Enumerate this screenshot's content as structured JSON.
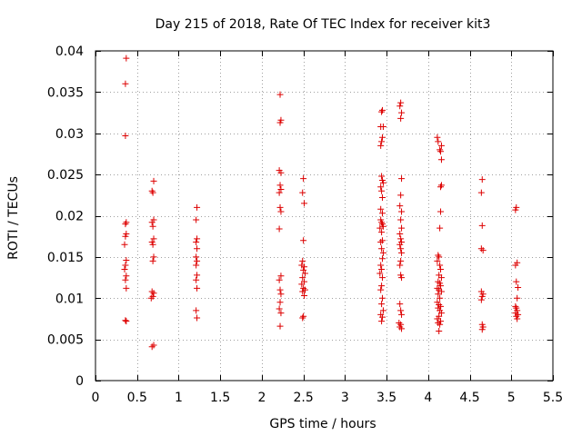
{
  "colors": {
    "marker": "#dd0000",
    "grid": "#a0a0a0",
    "axis": "#000000"
  },
  "chart_data": {
    "type": "scatter",
    "title": "Day 215 of 2018, Rate Of TEC Index for receiver kit3",
    "xlabel": "GPS time / hours",
    "ylabel": "ROTI / TECUs",
    "xlim": [
      0,
      5.5
    ],
    "ylim": [
      0,
      0.04
    ],
    "grid": true,
    "xticks": [
      0,
      0.5,
      1,
      1.5,
      2,
      2.5,
      3,
      3.5,
      4,
      4.5,
      5,
      5.5
    ],
    "xtick_labels": [
      "0",
      "0.5",
      "1",
      "1.5",
      "2",
      "2.5",
      "3",
      "3.5",
      "4",
      "4.5",
      "5",
      "5.5"
    ],
    "yticks": [
      0,
      0.005,
      0.01,
      0.015,
      0.02,
      0.025,
      0.03,
      0.035,
      0.04
    ],
    "ytick_labels": [
      "0",
      "0.005",
      "0.01",
      "0.015",
      "0.02",
      "0.025",
      "0.03",
      "0.035",
      "0.04"
    ],
    "marker": "+",
    "points": [
      [
        0.37,
        0.0391
      ],
      [
        0.36,
        0.036
      ],
      [
        0.36,
        0.0297
      ],
      [
        0.37,
        0.0192
      ],
      [
        0.36,
        0.019
      ],
      [
        0.37,
        0.0178
      ],
      [
        0.36,
        0.0175
      ],
      [
        0.35,
        0.0165
      ],
      [
        0.37,
        0.0146
      ],
      [
        0.36,
        0.014
      ],
      [
        0.35,
        0.0135
      ],
      [
        0.37,
        0.0127
      ],
      [
        0.36,
        0.0122
      ],
      [
        0.37,
        0.0112
      ],
      [
        0.36,
        0.0073
      ],
      [
        0.37,
        0.0072
      ],
      [
        0.7,
        0.0242
      ],
      [
        0.68,
        0.023
      ],
      [
        0.69,
        0.0228
      ],
      [
        0.7,
        0.0195
      ],
      [
        0.68,
        0.0192
      ],
      [
        0.69,
        0.0187
      ],
      [
        0.7,
        0.0172
      ],
      [
        0.68,
        0.0168
      ],
      [
        0.69,
        0.0165
      ],
      [
        0.7,
        0.015
      ],
      [
        0.69,
        0.0145
      ],
      [
        0.68,
        0.0108
      ],
      [
        0.7,
        0.0106
      ],
      [
        0.69,
        0.0102
      ],
      [
        0.67,
        0.01
      ],
      [
        0.7,
        0.0043
      ],
      [
        0.68,
        0.0041
      ],
      [
        1.22,
        0.021
      ],
      [
        1.21,
        0.0195
      ],
      [
        1.22,
        0.0172
      ],
      [
        1.21,
        0.0168
      ],
      [
        1.22,
        0.016
      ],
      [
        1.21,
        0.015
      ],
      [
        1.22,
        0.0145
      ],
      [
        1.21,
        0.014
      ],
      [
        1.22,
        0.0128
      ],
      [
        1.21,
        0.0122
      ],
      [
        1.22,
        0.0112
      ],
      [
        1.21,
        0.0085
      ],
      [
        1.22,
        0.0076
      ],
      [
        2.22,
        0.0347
      ],
      [
        2.23,
        0.0316
      ],
      [
        2.22,
        0.0313
      ],
      [
        2.21,
        0.0255
      ],
      [
        2.23,
        0.0252
      ],
      [
        2.22,
        0.0237
      ],
      [
        2.23,
        0.0232
      ],
      [
        2.21,
        0.0228
      ],
      [
        2.22,
        0.021
      ],
      [
        2.23,
        0.0205
      ],
      [
        2.21,
        0.0184
      ],
      [
        2.23,
        0.0127
      ],
      [
        2.21,
        0.0122
      ],
      [
        2.22,
        0.011
      ],
      [
        2.23,
        0.0105
      ],
      [
        2.22,
        0.0095
      ],
      [
        2.21,
        0.0087
      ],
      [
        2.23,
        0.0082
      ],
      [
        2.22,
        0.0066
      ],
      [
        2.5,
        0.0245
      ],
      [
        2.49,
        0.0228
      ],
      [
        2.51,
        0.0215
      ],
      [
        2.5,
        0.017
      ],
      [
        2.49,
        0.0145
      ],
      [
        2.48,
        0.014
      ],
      [
        2.51,
        0.0138
      ],
      [
        2.5,
        0.0134
      ],
      [
        2.52,
        0.013
      ],
      [
        2.49,
        0.0125
      ],
      [
        2.51,
        0.012
      ],
      [
        2.48,
        0.0117
      ],
      [
        2.5,
        0.0112
      ],
      [
        2.52,
        0.011
      ],
      [
        2.49,
        0.0108
      ],
      [
        2.51,
        0.0103
      ],
      [
        2.5,
        0.0078
      ],
      [
        2.49,
        0.0076
      ],
      [
        3.45,
        0.0328
      ],
      [
        3.44,
        0.0326
      ],
      [
        3.46,
        0.0308
      ],
      [
        3.43,
        0.0308
      ],
      [
        3.45,
        0.0295
      ],
      [
        3.44,
        0.029
      ],
      [
        3.43,
        0.0285
      ],
      [
        3.44,
        0.0248
      ],
      [
        3.45,
        0.0243
      ],
      [
        3.46,
        0.024
      ],
      [
        3.43,
        0.0235
      ],
      [
        3.44,
        0.023
      ],
      [
        3.45,
        0.0222
      ],
      [
        3.43,
        0.0208
      ],
      [
        3.45,
        0.0203
      ],
      [
        3.43,
        0.0195
      ],
      [
        3.44,
        0.0192
      ],
      [
        3.45,
        0.019
      ],
      [
        3.46,
        0.0187
      ],
      [
        3.42,
        0.0185
      ],
      [
        3.44,
        0.018
      ],
      [
        3.45,
        0.017
      ],
      [
        3.43,
        0.0168
      ],
      [
        3.44,
        0.016
      ],
      [
        3.46,
        0.0155
      ],
      [
        3.45,
        0.0148
      ],
      [
        3.43,
        0.014
      ],
      [
        3.44,
        0.0135
      ],
      [
        3.42,
        0.013
      ],
      [
        3.45,
        0.0125
      ],
      [
        3.44,
        0.0115
      ],
      [
        3.43,
        0.011
      ],
      [
        3.45,
        0.01
      ],
      [
        3.44,
        0.0093
      ],
      [
        3.46,
        0.0085
      ],
      [
        3.43,
        0.008
      ],
      [
        3.45,
        0.0077
      ],
      [
        3.44,
        0.0072
      ],
      [
        3.67,
        0.0337
      ],
      [
        3.66,
        0.0333
      ],
      [
        3.68,
        0.0325
      ],
      [
        3.67,
        0.0318
      ],
      [
        3.68,
        0.0245
      ],
      [
        3.67,
        0.0225
      ],
      [
        3.66,
        0.0212
      ],
      [
        3.68,
        0.0205
      ],
      [
        3.67,
        0.0195
      ],
      [
        3.68,
        0.0185
      ],
      [
        3.66,
        0.0178
      ],
      [
        3.67,
        0.0172
      ],
      [
        3.68,
        0.0168
      ],
      [
        3.66,
        0.0165
      ],
      [
        3.67,
        0.016
      ],
      [
        3.68,
        0.0155
      ],
      [
        3.67,
        0.0145
      ],
      [
        3.66,
        0.014
      ],
      [
        3.67,
        0.0128
      ],
      [
        3.68,
        0.0125
      ],
      [
        3.66,
        0.0093
      ],
      [
        3.67,
        0.0085
      ],
      [
        3.68,
        0.008
      ],
      [
        3.65,
        0.007
      ],
      [
        3.67,
        0.0068
      ],
      [
        3.66,
        0.0065
      ],
      [
        3.68,
        0.0063
      ],
      [
        4.11,
        0.0295
      ],
      [
        4.12,
        0.029
      ],
      [
        4.16,
        0.0285
      ],
      [
        4.14,
        0.028
      ],
      [
        4.15,
        0.0278
      ],
      [
        4.16,
        0.0268
      ],
      [
        4.16,
        0.0237
      ],
      [
        4.15,
        0.0235
      ],
      [
        4.15,
        0.0205
      ],
      [
        4.14,
        0.0185
      ],
      [
        4.12,
        0.0152
      ],
      [
        4.13,
        0.015
      ],
      [
        4.11,
        0.0145
      ],
      [
        4.14,
        0.014
      ],
      [
        4.15,
        0.0135
      ],
      [
        4.13,
        0.0128
      ],
      [
        4.16,
        0.0125
      ],
      [
        4.12,
        0.012
      ],
      [
        4.14,
        0.0118
      ],
      [
        4.15,
        0.0115
      ],
      [
        4.11,
        0.0112
      ],
      [
        4.13,
        0.011
      ],
      [
        4.16,
        0.0108
      ],
      [
        4.12,
        0.0105
      ],
      [
        4.14,
        0.01
      ],
      [
        4.11,
        0.0095
      ],
      [
        4.13,
        0.0092
      ],
      [
        4.15,
        0.009
      ],
      [
        4.12,
        0.0088
      ],
      [
        4.14,
        0.0085
      ],
      [
        4.16,
        0.0082
      ],
      [
        4.13,
        0.0078
      ],
      [
        4.11,
        0.0075
      ],
      [
        4.15,
        0.0072
      ],
      [
        4.12,
        0.007
      ],
      [
        4.14,
        0.0068
      ],
      [
        4.13,
        0.006
      ],
      [
        4.65,
        0.0244
      ],
      [
        4.64,
        0.0228
      ],
      [
        4.65,
        0.0188
      ],
      [
        4.64,
        0.016
      ],
      [
        4.66,
        0.0158
      ],
      [
        4.64,
        0.0108
      ],
      [
        4.66,
        0.0105
      ],
      [
        4.65,
        0.0102
      ],
      [
        4.64,
        0.0098
      ],
      [
        4.65,
        0.0068
      ],
      [
        4.66,
        0.0065
      ],
      [
        4.65,
        0.0062
      ],
      [
        5.06,
        0.021
      ],
      [
        5.05,
        0.0207
      ],
      [
        5.07,
        0.0143
      ],
      [
        5.05,
        0.014
      ],
      [
        5.06,
        0.012
      ],
      [
        5.08,
        0.0113
      ],
      [
        5.07,
        0.01
      ],
      [
        5.05,
        0.009
      ],
      [
        5.06,
        0.0088
      ],
      [
        5.07,
        0.0085
      ],
      [
        5.05,
        0.0082
      ],
      [
        5.08,
        0.008
      ],
      [
        5.06,
        0.0078
      ],
      [
        5.07,
        0.0075
      ]
    ]
  }
}
